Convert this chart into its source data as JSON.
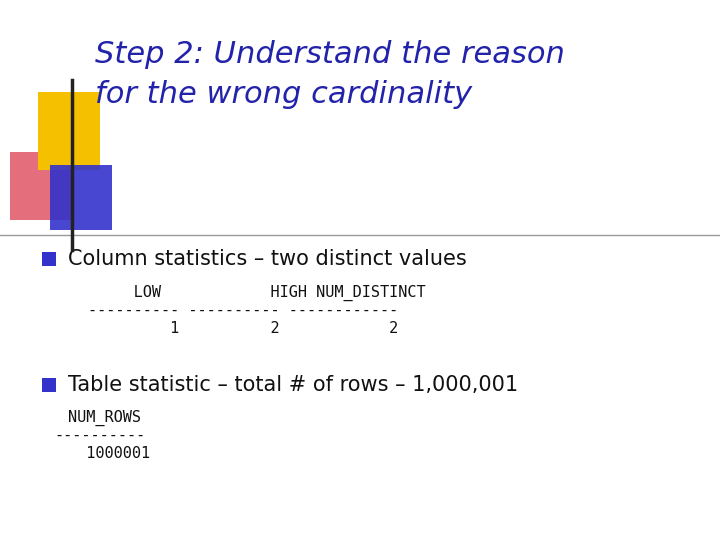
{
  "title_line1": "Step 2: Understand the reason",
  "title_line2": "for the wrong cardinality",
  "title_color": "#2222aa",
  "bg_color": "#ffffff",
  "bullet_color": "#3333cc",
  "bullet1_text": "Column statistics – two distinct values",
  "bullet2_text": "Table statistic – total # of rows – 1,000,001",
  "code_block1_line1": "     LOW            HIGH NUM_DISTINCT",
  "code_block1_line2": "---------- ---------- ------------",
  "code_block1_line3": "         1          2            2",
  "code_block2_line1": "NUM_ROWS",
  "code_block2_line2": "----------",
  "code_block2_line3": "  1000001",
  "title_fontsize": 22,
  "bullet_fontsize": 15,
  "code_fontsize": 11
}
